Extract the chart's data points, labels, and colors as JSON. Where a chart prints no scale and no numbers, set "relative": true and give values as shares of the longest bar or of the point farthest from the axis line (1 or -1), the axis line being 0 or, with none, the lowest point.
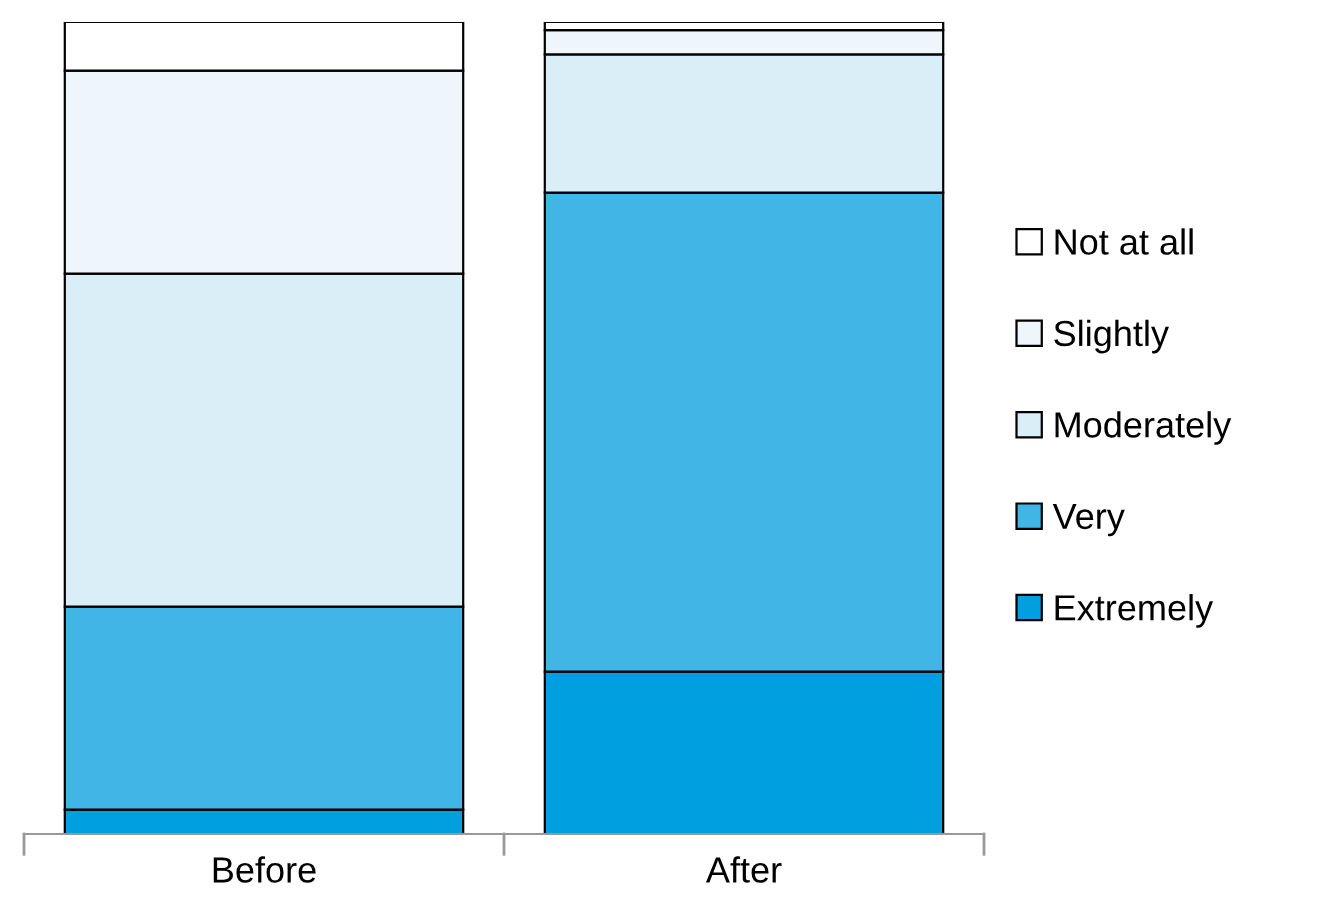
{
  "chart_data": {
    "type": "bar",
    "stacked": true,
    "relative": true,
    "categories": [
      "Before",
      "After"
    ],
    "series": [
      {
        "name": "Extremely",
        "color": "#009fdf",
        "values": [
          0.03,
          0.2
        ]
      },
      {
        "name": "Very",
        "color": "#41b6e6",
        "values": [
          0.25,
          0.59
        ]
      },
      {
        "name": "Moderately",
        "color": "#daeef8",
        "values": [
          0.41,
          0.17
        ]
      },
      {
        "name": "Slightly",
        "color": "#eef6fc",
        "values": [
          0.25,
          0.03
        ]
      },
      {
        "name": "Not at all",
        "color": "#ffffff",
        "values": [
          0.06,
          0.01
        ]
      }
    ],
    "legend": "right",
    "grid": false
  }
}
